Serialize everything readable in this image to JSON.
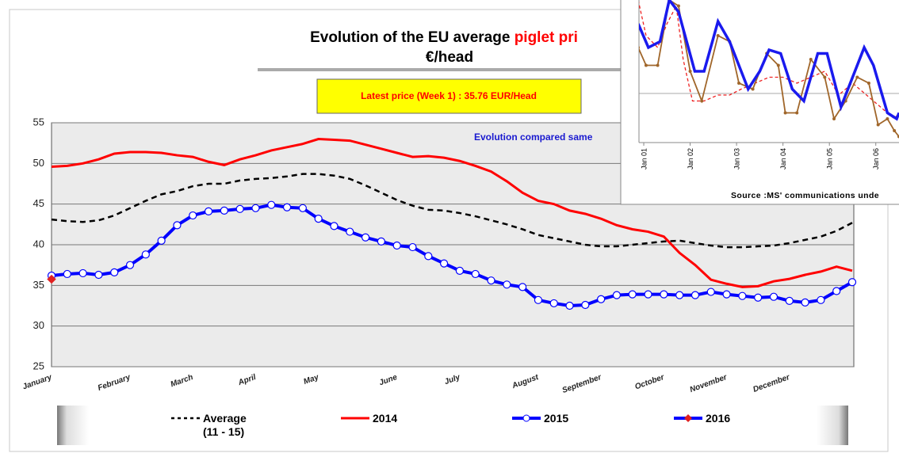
{
  "header": {
    "title": "Evolution of the EU average",
    "title_highlight": "piglet pri",
    "subtitle": "€/head",
    "latest_price": "Latest price  (Week 1) : 35.76 EUR/Head",
    "note": "Evolution compared same"
  },
  "chart_data": [
    {
      "type": "line",
      "categories": [
        "January",
        null,
        null,
        null,
        null,
        "February",
        null,
        null,
        null,
        "March",
        null,
        null,
        null,
        "April",
        null,
        null,
        null,
        "May",
        null,
        null,
        null,
        null,
        "June",
        null,
        null,
        null,
        "July",
        null,
        null,
        null,
        null,
        "August",
        null,
        null,
        null,
        "September",
        null,
        null,
        null,
        "October",
        null,
        null,
        null,
        "November",
        null,
        null,
        null,
        "December",
        null,
        null,
        null,
        null
      ],
      "ylim": [
        25,
        55
      ],
      "yticks": [
        25,
        30,
        35,
        40,
        45,
        50,
        55
      ],
      "grid": true,
      "legend": "bottom",
      "series": [
        {
          "name": "Average (11 - 15)",
          "color": "#000000",
          "style": "dashed",
          "marker": "none",
          "values": [
            43.1,
            42.9,
            42.8,
            43.0,
            43.6,
            44.5,
            45.4,
            46.2,
            46.6,
            47.2,
            47.5,
            47.5,
            47.9,
            48.1,
            48.2,
            48.4,
            48.7,
            48.7,
            48.5,
            48.1,
            47.3,
            46.4,
            45.5,
            44.8,
            44.3,
            44.2,
            43.9,
            43.5,
            43.0,
            42.5,
            41.9,
            41.2,
            40.8,
            40.4,
            40.0,
            39.8,
            39.8,
            40.0,
            40.2,
            40.4,
            40.5,
            40.2,
            39.9,
            39.7,
            39.7,
            39.8,
            39.9,
            40.2,
            40.6,
            41.0,
            41.7,
            42.7
          ]
        },
        {
          "name": "2014",
          "color": "#ff0000",
          "style": "solid",
          "marker": "none",
          "values": [
            49.6,
            49.7,
            50.0,
            50.5,
            51.2,
            51.4,
            51.4,
            51.3,
            51.0,
            50.8,
            50.2,
            49.8,
            50.5,
            51.0,
            51.6,
            52.0,
            52.4,
            53.0,
            52.9,
            52.8,
            52.3,
            51.8,
            51.3,
            50.8,
            50.9,
            50.7,
            50.3,
            49.7,
            49.0,
            47.8,
            46.4,
            45.4,
            45.0,
            44.2,
            43.8,
            43.2,
            42.4,
            41.9,
            41.6,
            41.0,
            39.0,
            37.5,
            35.7,
            35.2,
            34.8,
            34.9,
            35.5,
            35.8,
            36.3,
            36.7,
            37.3,
            36.8
          ]
        },
        {
          "name": "2015",
          "color": "#0000ff",
          "style": "solid",
          "marker": "circle",
          "values": [
            36.2,
            36.4,
            36.5,
            36.3,
            36.6,
            37.5,
            38.8,
            40.5,
            42.4,
            43.6,
            44.1,
            44.2,
            44.4,
            44.5,
            44.9,
            44.6,
            44.5,
            43.2,
            42.3,
            41.6,
            40.9,
            40.4,
            39.9,
            39.7,
            38.6,
            37.7,
            36.8,
            36.4,
            35.6,
            35.1,
            34.8,
            33.2,
            32.8,
            32.5,
            32.6,
            33.3,
            33.8,
            33.9,
            33.9,
            33.9,
            33.8,
            33.8,
            34.2,
            33.9,
            33.7,
            33.5,
            33.6,
            33.1,
            32.9,
            33.2,
            34.3,
            35.4
          ]
        },
        {
          "name": "2016",
          "color": "#0000ff",
          "style": "solid",
          "marker": "diamond",
          "marker_color": "#e02020",
          "values": [
            35.76,
            null,
            null,
            null,
            null,
            null,
            null,
            null,
            null,
            null,
            null,
            null,
            null,
            null,
            null,
            null,
            null,
            null,
            null,
            null,
            null,
            null,
            null,
            null,
            null,
            null,
            null,
            null,
            null,
            null,
            null,
            null,
            null,
            null,
            null,
            null,
            null,
            null,
            null,
            null,
            null,
            null,
            null,
            null,
            null,
            null,
            null,
            null,
            null,
            null,
            null,
            null
          ]
        }
      ]
    },
    {
      "type": "line",
      "source": "Source :MS' communications unde",
      "xlim": [
        -0.12,
        5.5
      ],
      "ylim": [
        0,
        120
      ],
      "xticks": [
        {
          "value": 0,
          "label": "Jan 01"
        },
        {
          "value": 1,
          "label": "Jan 02"
        },
        {
          "value": 2,
          "label": "Jan 03"
        },
        {
          "value": 3,
          "label": "Jan 04"
        },
        {
          "value": 4,
          "label": "Jan 05"
        },
        {
          "value": 5,
          "label": "Jan 06"
        }
      ],
      "series": [
        {
          "color": "#ee2222",
          "style": "dashed",
          "marker": "none",
          "x": [
            -0.12,
            0.05,
            0.3,
            0.5,
            0.7,
            0.85,
            1.05,
            1.3,
            1.6,
            1.85,
            2.1,
            2.4,
            2.7,
            3.0,
            3.3,
            3.6,
            3.9,
            4.2,
            4.5,
            4.8,
            5.1,
            5.4,
            5.5
          ],
          "values": [
            120,
            90,
            80,
            100,
            115,
            70,
            35,
            35,
            40,
            40,
            45,
            50,
            55,
            55,
            50,
            55,
            60,
            40,
            50,
            40,
            30,
            20,
            25
          ]
        },
        {
          "color": "#a0662a",
          "style": "solid",
          "marker": "dot",
          "x": [
            -0.12,
            0.05,
            0.3,
            0.55,
            0.75,
            1.0,
            1.25,
            1.6,
            1.85,
            2.05,
            2.35,
            2.65,
            2.9,
            3.05,
            3.3,
            3.6,
            3.9,
            4.1,
            4.35,
            4.6,
            4.85,
            5.05,
            5.25,
            5.4,
            5.5
          ],
          "values": [
            80,
            65,
            65,
            120,
            115,
            60,
            35,
            90,
            85,
            50,
            45,
            75,
            65,
            25,
            25,
            70,
            55,
            20,
            35,
            55,
            50,
            15,
            20,
            10,
            5
          ]
        },
        {
          "color": "#1a1aee",
          "style": "solid",
          "marker": "none",
          "x": [
            -0.12,
            0.1,
            0.35,
            0.55,
            0.75,
            1.1,
            1.3,
            1.6,
            1.85,
            2.25,
            2.5,
            2.7,
            2.95,
            3.2,
            3.45,
            3.75,
            3.95,
            4.25,
            4.45,
            4.75,
            4.95,
            5.25,
            5.45,
            5.5
          ],
          "values": [
            100,
            80,
            85,
            120,
            110,
            60,
            60,
            102,
            85,
            45,
            60,
            78,
            75,
            45,
            35,
            75,
            75,
            30,
            50,
            80,
            65,
            25,
            20,
            25
          ]
        }
      ]
    }
  ]
}
